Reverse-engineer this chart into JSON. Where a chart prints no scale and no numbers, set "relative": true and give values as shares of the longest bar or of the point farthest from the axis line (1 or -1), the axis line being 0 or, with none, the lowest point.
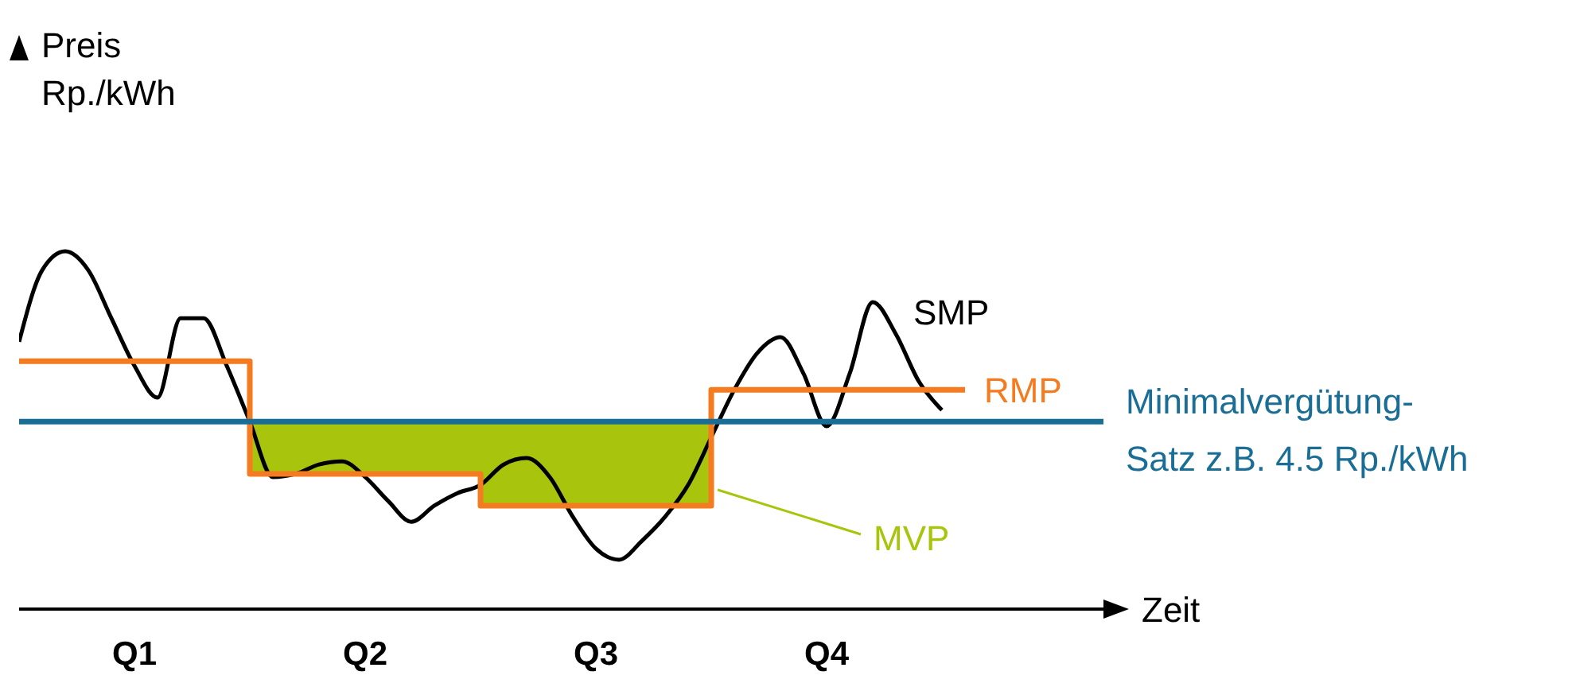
{
  "chart_data": {
    "type": "line",
    "relative": true,
    "ylabel": "Preis Rp./kWh",
    "xlabel": "Zeit",
    "marker": "none",
    "categories": [
      null,
      null,
      null,
      null,
      null,
      "Q1",
      null,
      null,
      null,
      null,
      null,
      null,
      null,
      null,
      null,
      "Q2",
      null,
      null,
      null,
      null,
      null,
      null,
      null,
      null,
      null,
      "Q3",
      null,
      null,
      null,
      null,
      null,
      null,
      null,
      null,
      null,
      "Q4",
      null,
      null,
      null,
      null,
      null,
      null,
      null,
      null,
      null,
      null,
      null,
      null
    ],
    "series": [
      {
        "name": "SMP",
        "color": "#000000",
        "values": [
          0.747,
          0.947,
          1,
          0.947,
          0.813,
          0.68,
          0.591,
          0.813,
          0.813,
          0.68,
          0.524,
          0.369,
          0.378,
          0.404,
          0.413,
          0.369,
          0.302,
          0.244,
          0.289,
          0.324,
          0.347,
          0.404,
          0.422,
          0.369,
          0.258,
          0.169,
          0.138,
          0.191,
          0.258,
          0.347,
          0.48,
          0.613,
          0.716,
          0.76,
          0.658,
          0.511,
          0.658,
          0.858,
          0.769,
          0.636,
          0.556,
          null,
          null,
          null,
          null,
          null,
          null,
          null
        ]
      },
      {
        "name": "RMP",
        "type": "step",
        "color": "#f47b20",
        "values": [
          0.693,
          null,
          null,
          null,
          null,
          null,
          null,
          null,
          null,
          null,
          0.378,
          null,
          null,
          null,
          null,
          null,
          null,
          null,
          null,
          null,
          0.289,
          null,
          null,
          null,
          null,
          null,
          null,
          null,
          null,
          null,
          0.613,
          null,
          null,
          null,
          null,
          null,
          null,
          null,
          null,
          null,
          null,
          0.613,
          null,
          null,
          null,
          null,
          null,
          null
        ]
      },
      {
        "name": "MVP",
        "type": "area",
        "color": "#a8c40c",
        "values": [
          null,
          null,
          null,
          null,
          null,
          null,
          null,
          null,
          null,
          null,
          0.524,
          0.524,
          0.524,
          0.524,
          0.524,
          0.524,
          0.524,
          0.524,
          0.524,
          0.524,
          0.524,
          0.524,
          0.524,
          0.524,
          0.524,
          0.524,
          0.524,
          0.524,
          0.524,
          0.524,
          0.524,
          null,
          null,
          null,
          null,
          null,
          null,
          null,
          null,
          null,
          null,
          null,
          null,
          null,
          null,
          null,
          null,
          null
        ]
      }
    ],
    "ref_lines": [
      {
        "axis": "y",
        "value": 0.524,
        "label": "Minimalvergütung-Satz z.B. 4.5 Rp./kWh",
        "color": "#1a6e96"
      }
    ]
  }
}
